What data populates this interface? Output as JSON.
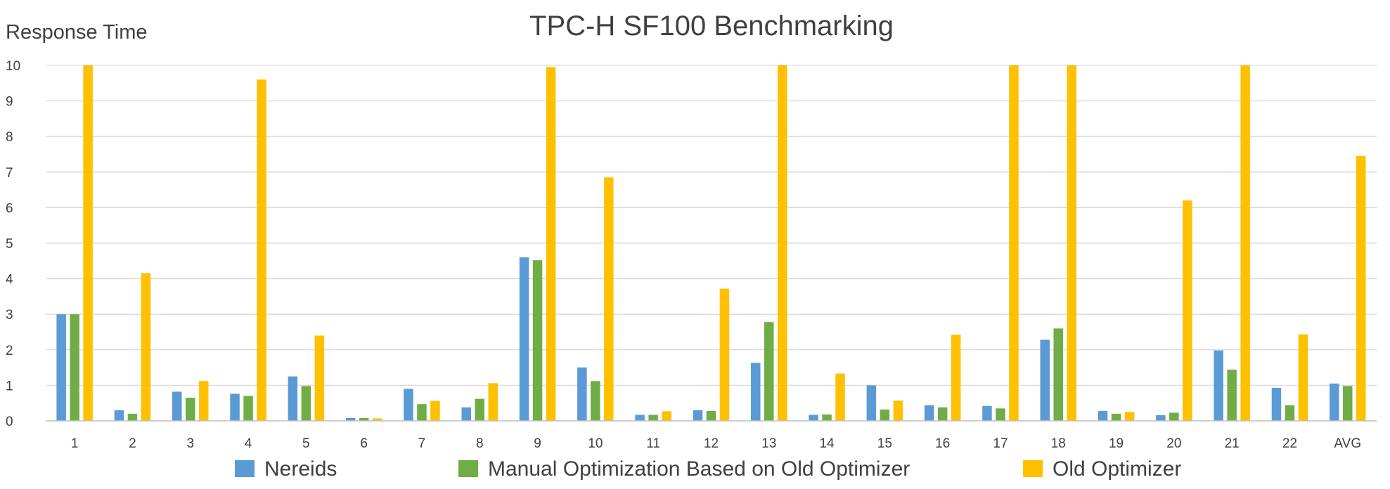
{
  "chart_data": {
    "type": "bar",
    "title": "TPC-H SF100 Benchmarking",
    "xlabel": "",
    "ylabel": "Response Time",
    "ylim": [
      0,
      10
    ],
    "yticks": [
      "0",
      "1",
      "2",
      "3",
      "4",
      "5",
      "6",
      "7",
      "8",
      "9",
      "10"
    ],
    "grid": true,
    "legend_position": "bottom",
    "categories": [
      "1",
      "2",
      "3",
      "4",
      "5",
      "6",
      "7",
      "8",
      "9",
      "10",
      "11",
      "12",
      "13",
      "14",
      "15",
      "16",
      "17",
      "18",
      "19",
      "20",
      "21",
      "22",
      "AVG"
    ],
    "series": [
      {
        "name": "Nereids",
        "color": "#5b9bd5",
        "values": [
          3.0,
          0.3,
          0.82,
          0.76,
          1.25,
          0.08,
          0.9,
          0.38,
          4.6,
          1.5,
          0.17,
          0.3,
          1.63,
          0.17,
          1.0,
          0.44,
          0.42,
          2.28,
          0.28,
          0.16,
          1.98,
          0.93,
          1.05
        ]
      },
      {
        "name": "Manual Optimization Based on Old Optimizer",
        "color": "#70ad47",
        "values": [
          3.0,
          0.2,
          0.65,
          0.7,
          0.98,
          0.08,
          0.47,
          0.62,
          4.52,
          1.12,
          0.17,
          0.28,
          2.78,
          0.18,
          0.32,
          0.38,
          0.35,
          2.6,
          0.2,
          0.23,
          1.44,
          0.44,
          0.98
        ]
      },
      {
        "name": "Old Optimizer",
        "color": "#ffc000",
        "values": [
          10,
          4.15,
          1.12,
          9.6,
          2.4,
          0.07,
          0.56,
          1.06,
          9.95,
          6.85,
          0.27,
          3.72,
          10,
          1.33,
          0.57,
          2.42,
          10,
          10,
          0.25,
          6.2,
          10,
          2.43,
          7.45
        ]
      }
    ]
  }
}
